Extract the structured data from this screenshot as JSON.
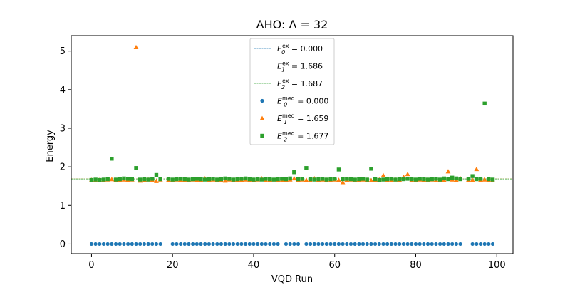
{
  "chart_data": {
    "type": "scatter",
    "title": "AHO: Λ = 32",
    "xlabel": "VQD Run",
    "ylabel": "Energy",
    "xlim": [
      -5,
      104
    ],
    "ylim": [
      -0.25,
      5.4
    ],
    "xticks": [
      0,
      20,
      40,
      60,
      80,
      100
    ],
    "yticks": [
      0,
      1,
      2,
      3,
      4,
      5
    ],
    "grid": false,
    "legend_position": "top-center",
    "colors": {
      "blue": "#1f77b4",
      "orange": "#ff7f0e",
      "green": "#2ca02c"
    },
    "reference_lines": [
      {
        "label_base": "E",
        "label_sub": "0",
        "label_sup": "ex",
        "label_value": " = 0.000",
        "value": 0.0,
        "color": "#1f77b4",
        "style": "dashed"
      },
      {
        "label_base": "E",
        "label_sub": "1",
        "label_sup": "ex",
        "label_value": " = 1.686",
        "value": 1.686,
        "color": "#ff7f0e",
        "style": "dashed"
      },
      {
        "label_base": "E",
        "label_sub": "2",
        "label_sup": "ex",
        "label_value": " = 1.687",
        "value": 1.687,
        "color": "#2ca02c",
        "style": "dashed"
      }
    ],
    "series": [
      {
        "label_base": "E",
        "label_sub": "0",
        "label_sup": "med",
        "label_value": " = 0.000",
        "marker": "circle",
        "color": "#1f77b4",
        "x": [
          0,
          1,
          2,
          3,
          4,
          5,
          6,
          7,
          8,
          9,
          10,
          11,
          12,
          13,
          14,
          15,
          16,
          17,
          20,
          21,
          22,
          23,
          24,
          25,
          26,
          27,
          28,
          29,
          30,
          31,
          32,
          33,
          34,
          35,
          36,
          37,
          38,
          39,
          40,
          41,
          42,
          43,
          44,
          45,
          46,
          48,
          49,
          50,
          51,
          53,
          54,
          55,
          56,
          57,
          58,
          59,
          60,
          61,
          62,
          63,
          64,
          65,
          66,
          67,
          68,
          69,
          70,
          71,
          72,
          73,
          74,
          75,
          76,
          77,
          78,
          79,
          80,
          81,
          82,
          83,
          84,
          85,
          86,
          87,
          88,
          89,
          90,
          91,
          94,
          95,
          96,
          97,
          98,
          99
        ],
        "y": [
          0,
          0,
          0,
          0,
          0,
          0,
          0,
          0,
          0,
          0,
          0,
          0,
          0,
          0,
          0,
          0,
          0,
          0,
          0,
          0,
          0,
          0,
          0,
          0,
          0,
          0,
          0,
          0,
          0,
          0,
          0,
          0,
          0,
          0,
          0,
          0,
          0,
          0,
          0,
          0,
          0,
          0,
          0,
          0,
          0,
          0,
          0,
          0,
          0,
          0,
          0,
          0,
          0,
          0,
          0,
          0,
          0,
          0,
          0,
          0,
          0,
          0,
          0,
          0,
          0,
          0,
          0,
          0,
          0,
          0,
          0,
          0,
          0,
          0,
          0,
          0,
          0,
          0,
          0,
          0,
          0,
          0,
          0,
          0,
          0,
          0,
          0,
          0,
          0,
          0,
          0,
          0,
          0,
          0
        ]
      },
      {
        "label_base": "E",
        "label_sub": "1",
        "label_sup": "med",
        "label_value": " = 1.659",
        "marker": "triangle",
        "color": "#ff7f0e",
        "x": [
          0,
          1,
          2,
          3,
          4,
          5,
          6,
          7,
          8,
          9,
          10,
          11,
          12,
          13,
          14,
          15,
          16,
          17,
          19,
          20,
          21,
          22,
          23,
          24,
          25,
          26,
          27,
          28,
          29,
          30,
          31,
          32,
          33,
          34,
          35,
          36,
          37,
          38,
          39,
          40,
          41,
          42,
          43,
          44,
          45,
          46,
          47,
          48,
          49,
          50,
          51,
          52,
          53,
          54,
          55,
          56,
          57,
          58,
          59,
          60,
          61,
          62,
          63,
          64,
          65,
          66,
          67,
          68,
          69,
          70,
          71,
          72,
          73,
          74,
          75,
          76,
          77,
          78,
          79,
          80,
          81,
          82,
          83,
          84,
          85,
          86,
          87,
          88,
          89,
          90,
          91,
          93,
          94,
          95,
          96,
          97,
          98,
          99
        ],
        "y": [
          1.66,
          1.65,
          1.66,
          1.65,
          1.67,
          1.68,
          1.66,
          1.65,
          1.67,
          1.66,
          1.67,
          5.1,
          1.64,
          1.66,
          1.67,
          1.66,
          1.63,
          1.67,
          1.66,
          1.65,
          1.67,
          1.66,
          1.66,
          1.65,
          1.67,
          1.66,
          1.66,
          1.7,
          1.66,
          1.67,
          1.65,
          1.66,
          1.64,
          1.67,
          1.66,
          1.65,
          1.66,
          1.67,
          1.65,
          1.66,
          1.67,
          1.7,
          1.65,
          1.66,
          1.67,
          1.66,
          1.65,
          1.66,
          1.67,
          1.7,
          1.66,
          1.67,
          1.66,
          1.65,
          1.7,
          1.66,
          1.67,
          1.66,
          1.65,
          1.67,
          1.66,
          1.6,
          1.66,
          1.67,
          1.65,
          1.66,
          1.67,
          1.66,
          1.65,
          1.66,
          1.67,
          1.78,
          1.66,
          1.65,
          1.67,
          1.66,
          1.74,
          1.81,
          1.66,
          1.65,
          1.67,
          1.66,
          1.66,
          1.67,
          1.65,
          1.66,
          1.66,
          1.88,
          1.67,
          1.66,
          1.7,
          1.66,
          1.66,
          1.94,
          1.66,
          1.67,
          1.66,
          1.65
        ]
      },
      {
        "label_base": "E",
        "label_sub": "2",
        "label_sup": "med",
        "label_value": " = 1.677",
        "marker": "square",
        "color": "#2ca02c",
        "x": [
          0,
          1,
          2,
          3,
          4,
          5,
          6,
          7,
          8,
          9,
          10,
          11,
          12,
          13,
          14,
          15,
          16,
          17,
          19,
          20,
          21,
          22,
          23,
          24,
          25,
          26,
          27,
          28,
          29,
          30,
          31,
          32,
          33,
          34,
          35,
          36,
          37,
          38,
          39,
          40,
          41,
          42,
          43,
          44,
          45,
          46,
          47,
          48,
          49,
          50,
          51,
          52,
          53,
          54,
          55,
          56,
          57,
          58,
          59,
          60,
          61,
          62,
          63,
          64,
          65,
          66,
          67,
          68,
          69,
          70,
          71,
          72,
          73,
          74,
          75,
          76,
          77,
          78,
          79,
          80,
          81,
          82,
          83,
          84,
          85,
          86,
          87,
          88,
          89,
          90,
          91,
          93,
          94,
          95,
          96,
          97,
          98,
          99
        ],
        "y": [
          1.66,
          1.67,
          1.66,
          1.67,
          1.68,
          2.21,
          1.67,
          1.68,
          1.7,
          1.69,
          1.68,
          1.97,
          1.67,
          1.68,
          1.67,
          1.69,
          1.79,
          1.68,
          1.69,
          1.67,
          1.68,
          1.69,
          1.68,
          1.67,
          1.68,
          1.69,
          1.68,
          1.67,
          1.68,
          1.69,
          1.67,
          1.68,
          1.7,
          1.69,
          1.67,
          1.68,
          1.69,
          1.7,
          1.68,
          1.67,
          1.68,
          1.67,
          1.69,
          1.68,
          1.67,
          1.68,
          1.69,
          1.68,
          1.7,
          1.86,
          1.68,
          1.69,
          1.97,
          1.68,
          1.67,
          1.68,
          1.69,
          1.67,
          1.68,
          1.69,
          1.93,
          1.68,
          1.69,
          1.68,
          1.67,
          1.68,
          1.69,
          1.67,
          1.95,
          1.68,
          1.66,
          1.67,
          1.68,
          1.69,
          1.67,
          1.68,
          1.68,
          1.69,
          1.68,
          1.67,
          1.69,
          1.68,
          1.67,
          1.68,
          1.69,
          1.67,
          1.7,
          1.68,
          1.72,
          1.7,
          1.68,
          1.69,
          1.76,
          1.68,
          1.69,
          3.64,
          1.68,
          1.67
        ]
      }
    ]
  }
}
